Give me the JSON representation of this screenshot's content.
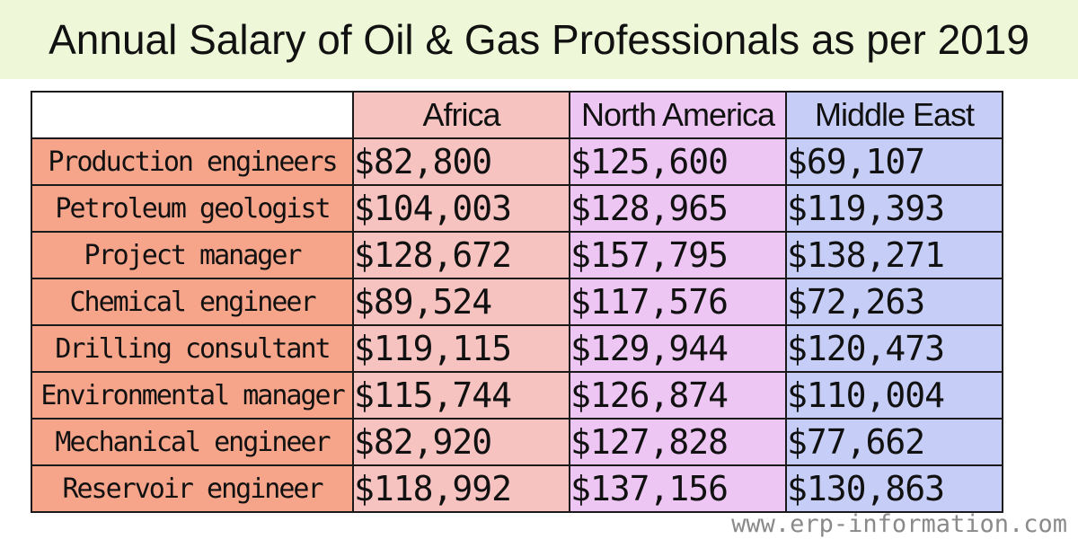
{
  "chart_data": {
    "type": "table",
    "title": "Annual Salary of Oil & Gas Professionals as per 2019",
    "columns": [
      "Africa",
      "North America",
      "Middle East"
    ],
    "rows": [
      {
        "label": "Production engineers",
        "values": [
          "$82,800",
          "$125,600",
          "$69,107"
        ]
      },
      {
        "label": "Petroleum geologist",
        "values": [
          "$104,003",
          "$128,965",
          "$119,393"
        ]
      },
      {
        "label": "Project manager",
        "values": [
          "$128,672",
          "$157,795",
          "$138,271"
        ]
      },
      {
        "label": "Chemical engineer",
        "values": [
          "$89,524",
          "$117,576",
          "$72,263"
        ]
      },
      {
        "label": "Drilling consultant",
        "values": [
          "$119,115",
          "$129,944",
          "$120,473"
        ]
      },
      {
        "label": "Environmental manager",
        "values": [
          "$115,744",
          "$126,874",
          "$110,004"
        ]
      },
      {
        "label": "Mechanical engineer",
        "values": [
          "$82,920",
          "$127,828",
          "$77,662"
        ]
      },
      {
        "label": "Reservoir engineer",
        "values": [
          "$118,992",
          "$137,156",
          "$130,863"
        ]
      }
    ],
    "colors": {
      "title_band": "#eef8d9",
      "row_label": "#f6a58b",
      "africa": "#f6c3c0",
      "north_america": "#eec6f4",
      "middle_east": "#c6cdf6"
    }
  },
  "watermark": "www.erp-information.com"
}
